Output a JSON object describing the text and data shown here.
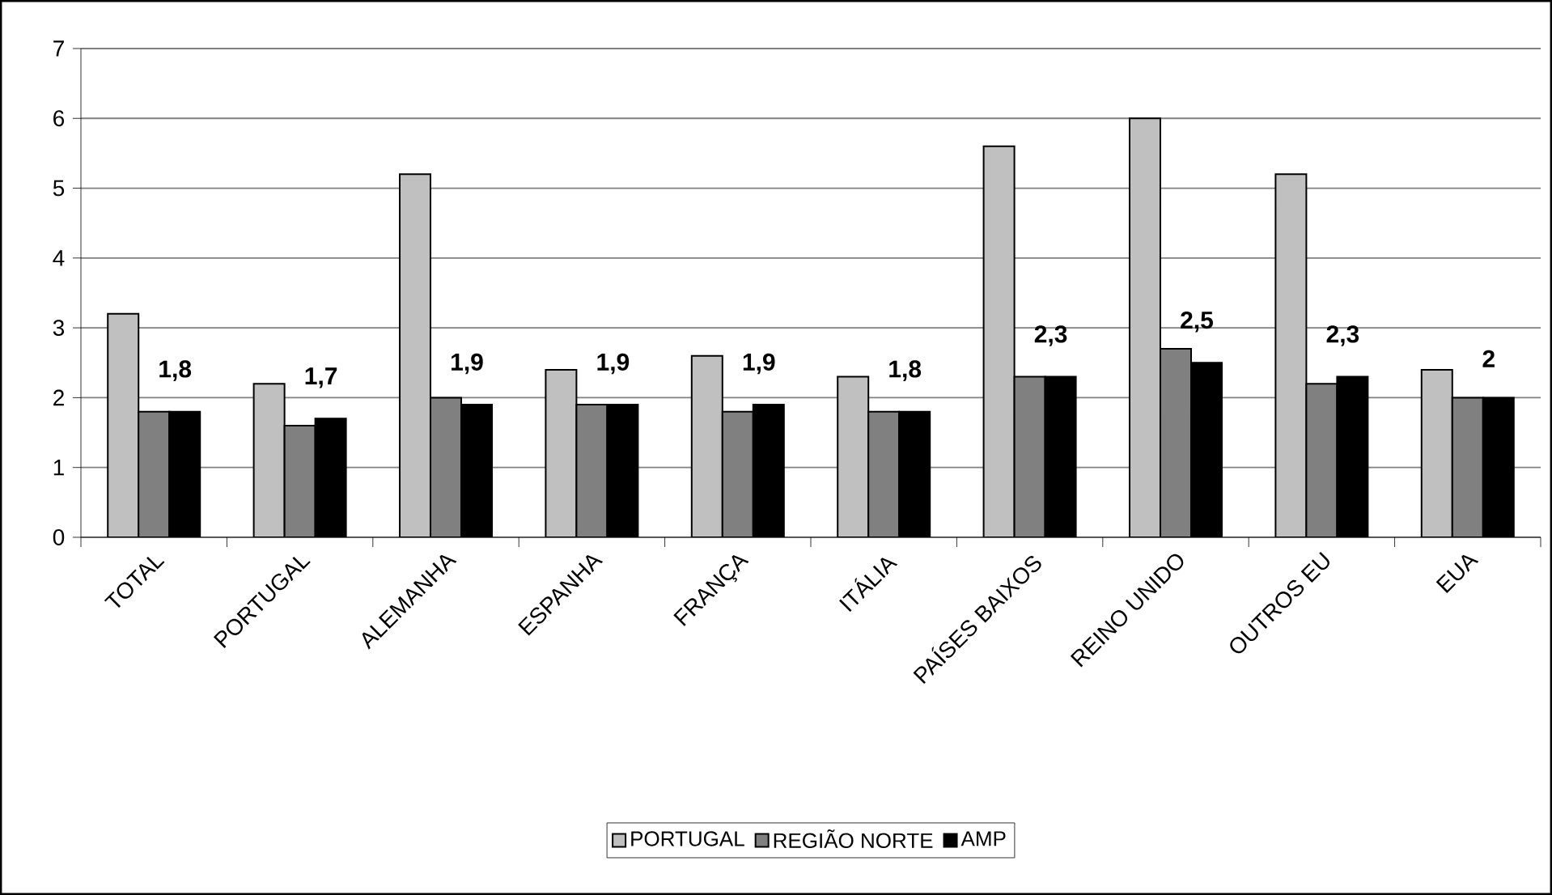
{
  "chart_data": {
    "type": "bar",
    "categories": [
      "TOTAL",
      "PORTUGAL",
      "ALEMANHA",
      "ESPANHA",
      "FRANÇA",
      "ITÁLIA",
      "PAÍSES BAIXOS",
      "REINO UNIDO",
      "OUTROS EU",
      "EUA"
    ],
    "series": [
      {
        "name": "PORTUGAL",
        "color": "#c0c0c0",
        "values": [
          3.2,
          2.2,
          5.2,
          2.4,
          2.6,
          2.3,
          5.6,
          6.0,
          5.2,
          2.4
        ]
      },
      {
        "name": "REGIÃO NORTE",
        "color": "#808080",
        "values": [
          1.8,
          1.6,
          2.0,
          1.9,
          1.8,
          1.8,
          2.3,
          2.7,
          2.2,
          2.0
        ]
      },
      {
        "name": "AMP",
        "color": "#000000",
        "values": [
          1.8,
          1.7,
          1.9,
          1.9,
          1.9,
          1.8,
          2.3,
          2.5,
          2.3,
          2
        ],
        "value_labels": [
          "1,8",
          "1,7",
          "1,9",
          "1,9",
          "1,9",
          "1,8",
          "2,3",
          "2,5",
          "2,3",
          "2"
        ]
      }
    ],
    "ylim": [
      0,
      7
    ],
    "yticks": [
      0,
      1,
      2,
      3,
      4,
      5,
      6,
      7
    ],
    "grid": "y",
    "legend": "bottom"
  }
}
